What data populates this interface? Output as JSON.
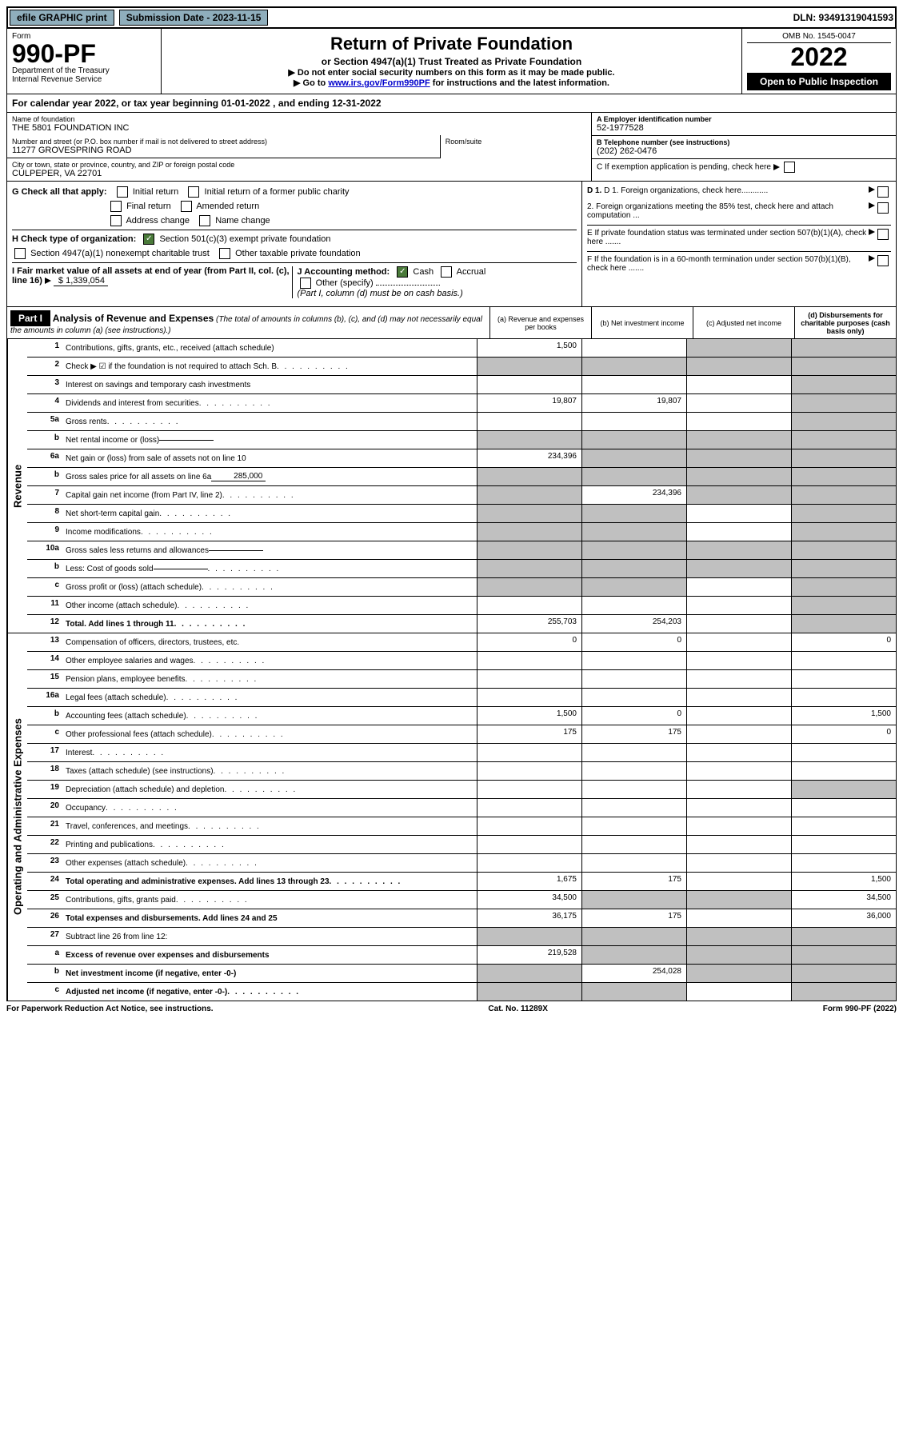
{
  "header_bar": {
    "efile": "efile GRAPHIC print",
    "submission": "Submission Date - 2023-11-15",
    "dln": "DLN: 93491319041593"
  },
  "form_header": {
    "form_label": "Form",
    "form_no": "990-PF",
    "dept": "Department of the Treasury",
    "irs": "Internal Revenue Service",
    "title": "Return of Private Foundation",
    "subtitle": "or Section 4947(a)(1) Trust Treated as Private Foundation",
    "note1": "▶ Do not enter social security numbers on this form as it may be made public.",
    "note2_pre": "▶ Go to ",
    "note2_link": "www.irs.gov/Form990PF",
    "note2_post": " for instructions and the latest information.",
    "omb": "OMB No. 1545-0047",
    "year": "2022",
    "open": "Open to Public Inspection"
  },
  "cal_year": "For calendar year 2022, or tax year beginning 01-01-2022                      , and ending 12-31-2022",
  "info": {
    "name_label": "Name of foundation",
    "name": "THE 5801 FOUNDATION INC",
    "addr_label": "Number and street (or P.O. box number if mail is not delivered to street address)",
    "addr": "11277 GROVESPRING ROAD",
    "room_label": "Room/suite",
    "city_label": "City or town, state or province, country, and ZIP or foreign postal code",
    "city": "CULPEPER, VA  22701",
    "ein_label": "A Employer identification number",
    "ein": "52-1977528",
    "phone_label": "B Telephone number (see instructions)",
    "phone": "(202) 262-0476",
    "c_label": "C If exemption application is pending, check here"
  },
  "checks": {
    "g_label": "G Check all that apply:",
    "g1": "Initial return",
    "g2": "Initial return of a former public charity",
    "g3": "Final return",
    "g4": "Amended return",
    "g5": "Address change",
    "g6": "Name change",
    "h_label": "H Check type of organization:",
    "h1": "Section 501(c)(3) exempt private foundation",
    "h2": "Section 4947(a)(1) nonexempt charitable trust",
    "h3": "Other taxable private foundation",
    "i_label": "I Fair market value of all assets at end of year (from Part II, col. (c), line 16)",
    "i_val": "$  1,339,054",
    "j_label": "J Accounting method:",
    "j1": "Cash",
    "j2": "Accrual",
    "j3": "Other (specify)",
    "j_note": "(Part I, column (d) must be on cash basis.)",
    "d1": "D 1. Foreign organizations, check here............",
    "d2": "2. Foreign organizations meeting the 85% test, check here and attach computation ...",
    "e": "E If private foundation status was terminated under section 507(b)(1)(A), check here .......",
    "f": "F If the foundation is in a 60-month termination under section 507(b)(1)(B), check here ......."
  },
  "part1": {
    "label": "Part I",
    "title": "Analysis of Revenue and Expenses",
    "title_note": "(The total of amounts in columns (b), (c), and (d) may not necessarily equal the amounts in column (a) (see instructions).)",
    "col_a": "(a) Revenue and expenses per books",
    "col_b": "(b) Net investment income",
    "col_c": "(c) Adjusted net income",
    "col_d": "(d) Disbursements for charitable purposes (cash basis only)",
    "revenue_label": "Revenue",
    "expenses_label": "Operating and Administrative Expenses"
  },
  "rows": [
    {
      "n": "1",
      "d": "Contributions, gifts, grants, etc., received (attach schedule)",
      "a": "1,500",
      "b": "",
      "c": "g",
      "dd": "g"
    },
    {
      "n": "2",
      "d": "Check ▶ ☑ if the foundation is not required to attach Sch. B",
      "a": "g",
      "b": "g",
      "c": "g",
      "dd": "g",
      "dots": true
    },
    {
      "n": "3",
      "d": "Interest on savings and temporary cash investments",
      "a": "",
      "b": "",
      "c": "",
      "dd": "g"
    },
    {
      "n": "4",
      "d": "Dividends and interest from securities",
      "a": "19,807",
      "b": "19,807",
      "c": "",
      "dd": "g",
      "dots": true
    },
    {
      "n": "5a",
      "d": "Gross rents",
      "a": "",
      "b": "",
      "c": "",
      "dd": "g",
      "dots": true
    },
    {
      "n": "b",
      "d": "Net rental income or (loss)",
      "a": "g",
      "b": "g",
      "c": "g",
      "dd": "g",
      "inline": true
    },
    {
      "n": "6a",
      "d": "Net gain or (loss) from sale of assets not on line 10",
      "a": "234,396",
      "b": "g",
      "c": "g",
      "dd": "g"
    },
    {
      "n": "b",
      "d": "Gross sales price for all assets on line 6a",
      "a": "g",
      "b": "g",
      "c": "g",
      "dd": "g",
      "inline": true,
      "inline_val": "285,000"
    },
    {
      "n": "7",
      "d": "Capital gain net income (from Part IV, line 2)",
      "a": "g",
      "b": "234,396",
      "c": "g",
      "dd": "g",
      "dots": true
    },
    {
      "n": "8",
      "d": "Net short-term capital gain",
      "a": "g",
      "b": "g",
      "c": "",
      "dd": "g",
      "dots": true
    },
    {
      "n": "9",
      "d": "Income modifications",
      "a": "g",
      "b": "g",
      "c": "",
      "dd": "g",
      "dots": true
    },
    {
      "n": "10a",
      "d": "Gross sales less returns and allowances",
      "a": "g",
      "b": "g",
      "c": "g",
      "dd": "g",
      "inline": true
    },
    {
      "n": "b",
      "d": "Less: Cost of goods sold",
      "a": "g",
      "b": "g",
      "c": "g",
      "dd": "g",
      "inline": true,
      "dots": true
    },
    {
      "n": "c",
      "d": "Gross profit or (loss) (attach schedule)",
      "a": "g",
      "b": "g",
      "c": "",
      "dd": "g",
      "dots": true
    },
    {
      "n": "11",
      "d": "Other income (attach schedule)",
      "a": "",
      "b": "",
      "c": "",
      "dd": "g",
      "dots": true
    },
    {
      "n": "12",
      "d": "Total. Add lines 1 through 11",
      "a": "255,703",
      "b": "254,203",
      "c": "",
      "dd": "g",
      "bold": true,
      "dots": true
    }
  ],
  "exp_rows": [
    {
      "n": "13",
      "d": "Compensation of officers, directors, trustees, etc.",
      "a": "0",
      "b": "0",
      "c": "",
      "dd": "0"
    },
    {
      "n": "14",
      "d": "Other employee salaries and wages",
      "a": "",
      "b": "",
      "c": "",
      "dd": "",
      "dots": true
    },
    {
      "n": "15",
      "d": "Pension plans, employee benefits",
      "a": "",
      "b": "",
      "c": "",
      "dd": "",
      "dots": true
    },
    {
      "n": "16a",
      "d": "Legal fees (attach schedule)",
      "a": "",
      "b": "",
      "c": "",
      "dd": "",
      "dots": true
    },
    {
      "n": "b",
      "d": "Accounting fees (attach schedule)",
      "a": "1,500",
      "b": "0",
      "c": "",
      "dd": "1,500",
      "dots": true
    },
    {
      "n": "c",
      "d": "Other professional fees (attach schedule)",
      "a": "175",
      "b": "175",
      "c": "",
      "dd": "0",
      "dots": true
    },
    {
      "n": "17",
      "d": "Interest",
      "a": "",
      "b": "",
      "c": "",
      "dd": "",
      "dots": true
    },
    {
      "n": "18",
      "d": "Taxes (attach schedule) (see instructions)",
      "a": "",
      "b": "",
      "c": "",
      "dd": "",
      "dots": true
    },
    {
      "n": "19",
      "d": "Depreciation (attach schedule) and depletion",
      "a": "",
      "b": "",
      "c": "",
      "dd": "g",
      "dots": true
    },
    {
      "n": "20",
      "d": "Occupancy",
      "a": "",
      "b": "",
      "c": "",
      "dd": "",
      "dots": true
    },
    {
      "n": "21",
      "d": "Travel, conferences, and meetings",
      "a": "",
      "b": "",
      "c": "",
      "dd": "",
      "dots": true
    },
    {
      "n": "22",
      "d": "Printing and publications",
      "a": "",
      "b": "",
      "c": "",
      "dd": "",
      "dots": true
    },
    {
      "n": "23",
      "d": "Other expenses (attach schedule)",
      "a": "",
      "b": "",
      "c": "",
      "dd": "",
      "dots": true
    },
    {
      "n": "24",
      "d": "Total operating and administrative expenses. Add lines 13 through 23",
      "a": "1,675",
      "b": "175",
      "c": "",
      "dd": "1,500",
      "bold": true,
      "dots": true
    },
    {
      "n": "25",
      "d": "Contributions, gifts, grants paid",
      "a": "34,500",
      "b": "g",
      "c": "g",
      "dd": "34,500",
      "dots": true
    },
    {
      "n": "26",
      "d": "Total expenses and disbursements. Add lines 24 and 25",
      "a": "36,175",
      "b": "175",
      "c": "",
      "dd": "36,000",
      "bold": true
    },
    {
      "n": "27",
      "d": "Subtract line 26 from line 12:",
      "a": "g",
      "b": "g",
      "c": "g",
      "dd": "g"
    },
    {
      "n": "a",
      "d": "Excess of revenue over expenses and disbursements",
      "a": "219,528",
      "b": "g",
      "c": "g",
      "dd": "g",
      "bold": true
    },
    {
      "n": "b",
      "d": "Net investment income (if negative, enter -0-)",
      "a": "g",
      "b": "254,028",
      "c": "g",
      "dd": "g",
      "bold": true
    },
    {
      "n": "c",
      "d": "Adjusted net income (if negative, enter -0-)",
      "a": "g",
      "b": "g",
      "c": "",
      "dd": "g",
      "bold": true,
      "dots": true
    }
  ],
  "footer": {
    "left": "For Paperwork Reduction Act Notice, see instructions.",
    "center": "Cat. No. 11289X",
    "right": "Form 990-PF (2022)"
  }
}
